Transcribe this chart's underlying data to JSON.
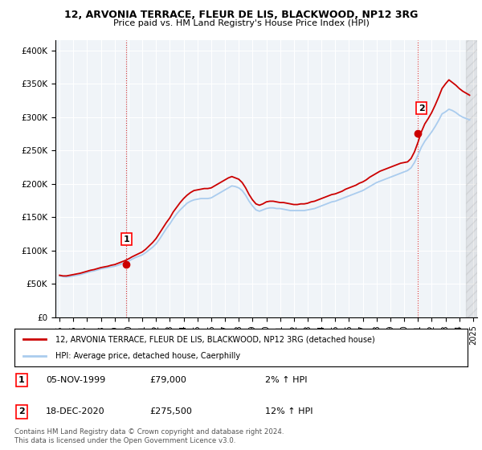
{
  "title_line1": "12, ARVONIA TERRACE, FLEUR DE LIS, BLACKWOOD, NP12 3RG",
  "title_line2": "Price paid vs. HM Land Registry's House Price Index (HPI)",
  "ylabel_ticks": [
    "£0",
    "£50K",
    "£100K",
    "£150K",
    "£200K",
    "£250K",
    "£300K",
    "£350K",
    "£400K"
  ],
  "ytick_values": [
    0,
    50000,
    100000,
    150000,
    200000,
    250000,
    300000,
    350000,
    400000
  ],
  "ylim": [
    0,
    415000
  ],
  "xlim_start": 1994.7,
  "xlim_end": 2025.3,
  "hpi_color": "#aaccee",
  "price_color": "#cc0000",
  "marker_color": "#cc0000",
  "background_color": "#f0f4f8",
  "grid_color": "#ffffff",
  "legend_label_red": "12, ARVONIA TERRACE, FLEUR DE LIS, BLACKWOOD, NP12 3RG (detached house)",
  "legend_label_blue": "HPI: Average price, detached house, Caerphilly",
  "transaction1_label": "1",
  "transaction1_date": "05-NOV-1999",
  "transaction1_price": "£79,000",
  "transaction1_hpi": "2% ↑ HPI",
  "transaction1_year": 1999.85,
  "transaction1_value": 79000,
  "transaction2_label": "2",
  "transaction2_date": "18-DEC-2020",
  "transaction2_price": "£275,500",
  "transaction2_hpi": "12% ↑ HPI",
  "transaction2_year": 2020.96,
  "transaction2_value": 275500,
  "footer_text": "Contains HM Land Registry data © Crown copyright and database right 2024.\nThis data is licensed under the Open Government Licence v3.0.",
  "hpi_data_years": [
    1995.0,
    1995.25,
    1995.5,
    1995.75,
    1996.0,
    1996.25,
    1996.5,
    1996.75,
    1997.0,
    1997.25,
    1997.5,
    1997.75,
    1998.0,
    1998.25,
    1998.5,
    1998.75,
    1999.0,
    1999.25,
    1999.5,
    1999.75,
    2000.0,
    2000.25,
    2000.5,
    2000.75,
    2001.0,
    2001.25,
    2001.5,
    2001.75,
    2002.0,
    2002.25,
    2002.5,
    2002.75,
    2003.0,
    2003.25,
    2003.5,
    2003.75,
    2004.0,
    2004.25,
    2004.5,
    2004.75,
    2005.0,
    2005.25,
    2005.5,
    2005.75,
    2006.0,
    2006.25,
    2006.5,
    2006.75,
    2007.0,
    2007.25,
    2007.5,
    2007.75,
    2008.0,
    2008.25,
    2008.5,
    2008.75,
    2009.0,
    2009.25,
    2009.5,
    2009.75,
    2010.0,
    2010.25,
    2010.5,
    2010.75,
    2011.0,
    2011.25,
    2011.5,
    2011.75,
    2012.0,
    2012.25,
    2012.5,
    2012.75,
    2013.0,
    2013.25,
    2013.5,
    2013.75,
    2014.0,
    2014.25,
    2014.5,
    2014.75,
    2015.0,
    2015.25,
    2015.5,
    2015.75,
    2016.0,
    2016.25,
    2016.5,
    2016.75,
    2017.0,
    2017.25,
    2017.5,
    2017.75,
    2018.0,
    2018.25,
    2018.5,
    2018.75,
    2019.0,
    2019.25,
    2019.5,
    2019.75,
    2020.0,
    2020.25,
    2020.5,
    2020.75,
    2021.0,
    2021.25,
    2021.5,
    2021.75,
    2022.0,
    2022.25,
    2022.5,
    2022.75,
    2023.0,
    2023.25,
    2023.5,
    2023.75,
    2024.0,
    2024.25,
    2024.5,
    2024.75
  ],
  "hpi_data_values": [
    62000,
    61000,
    60500,
    61000,
    62000,
    63000,
    64000,
    65500,
    67000,
    68500,
    69500,
    71000,
    72500,
    73500,
    74500,
    75500,
    76500,
    78000,
    80000,
    82000,
    84000,
    87000,
    89500,
    91500,
    93500,
    97000,
    101000,
    105000,
    110000,
    117000,
    125000,
    133000,
    140000,
    148000,
    155000,
    161000,
    166000,
    171000,
    174000,
    176000,
    177000,
    178000,
    178000,
    178000,
    179000,
    182000,
    185000,
    188000,
    191000,
    194000,
    197000,
    196000,
    194000,
    190000,
    183000,
    174000,
    167000,
    161000,
    159000,
    161000,
    163000,
    164000,
    164000,
    163000,
    163000,
    162000,
    161000,
    160000,
    160000,
    160000,
    160000,
    160000,
    161000,
    162000,
    163000,
    165000,
    167000,
    169000,
    171000,
    173000,
    174000,
    176000,
    178000,
    180000,
    182000,
    184000,
    186000,
    188000,
    190000,
    193000,
    196000,
    199000,
    202000,
    204000,
    206000,
    208000,
    210000,
    212000,
    214000,
    216000,
    218000,
    220000,
    224000,
    232000,
    243000,
    255000,
    264000,
    271000,
    278000,
    286000,
    295000,
    305000,
    308000,
    312000,
    310000,
    307000,
    303000,
    300000,
    298000,
    296000
  ],
  "price_data_years": [
    1995.0,
    1995.25,
    1995.5,
    1995.75,
    1996.0,
    1996.25,
    1996.5,
    1996.75,
    1997.0,
    1997.25,
    1997.5,
    1997.75,
    1998.0,
    1998.25,
    1998.5,
    1998.75,
    1999.0,
    1999.25,
    1999.5,
    1999.75,
    2000.0,
    2000.25,
    2000.5,
    2000.75,
    2001.0,
    2001.25,
    2001.5,
    2001.75,
    2002.0,
    2002.25,
    2002.5,
    2002.75,
    2003.0,
    2003.25,
    2003.5,
    2003.75,
    2004.0,
    2004.25,
    2004.5,
    2004.75,
    2005.0,
    2005.25,
    2005.5,
    2005.75,
    2006.0,
    2006.25,
    2006.5,
    2006.75,
    2007.0,
    2007.25,
    2007.5,
    2007.75,
    2008.0,
    2008.25,
    2008.5,
    2008.75,
    2009.0,
    2009.25,
    2009.5,
    2009.75,
    2010.0,
    2010.25,
    2010.5,
    2010.75,
    2011.0,
    2011.25,
    2011.5,
    2011.75,
    2012.0,
    2012.25,
    2012.5,
    2012.75,
    2013.0,
    2013.25,
    2013.5,
    2013.75,
    2014.0,
    2014.25,
    2014.5,
    2014.75,
    2015.0,
    2015.25,
    2015.5,
    2015.75,
    2016.0,
    2016.25,
    2016.5,
    2016.75,
    2017.0,
    2017.25,
    2017.5,
    2017.75,
    2018.0,
    2018.25,
    2018.5,
    2018.75,
    2019.0,
    2019.25,
    2019.5,
    2019.75,
    2020.0,
    2020.25,
    2020.5,
    2020.75,
    2021.0,
    2021.25,
    2021.5,
    2021.75,
    2022.0,
    2022.25,
    2022.5,
    2022.75,
    2023.0,
    2023.25,
    2023.5,
    2023.75,
    2024.0,
    2024.25,
    2024.5,
    2024.75
  ],
  "price_data_values": [
    63000,
    62000,
    62000,
    63000,
    64000,
    65000,
    66000,
    67500,
    69000,
    70500,
    71500,
    73000,
    74500,
    75500,
    76500,
    78000,
    79000,
    81000,
    83000,
    85000,
    87500,
    90500,
    93000,
    95500,
    98000,
    102000,
    107000,
    112000,
    118000,
    126000,
    134000,
    142000,
    149000,
    158000,
    165000,
    172000,
    178000,
    183000,
    187000,
    190000,
    191000,
    192000,
    193000,
    193000,
    194000,
    197000,
    200000,
    203000,
    206000,
    209000,
    211000,
    209000,
    207000,
    202000,
    194000,
    184000,
    176000,
    170000,
    168000,
    170000,
    173000,
    174000,
    174000,
    173000,
    172000,
    172000,
    171000,
    170000,
    169000,
    169000,
    170000,
    170000,
    171000,
    173000,
    174000,
    176000,
    178000,
    180000,
    182000,
    184000,
    185000,
    187000,
    189000,
    192000,
    194000,
    196000,
    198000,
    201000,
    203000,
    206000,
    210000,
    213000,
    216000,
    219000,
    221000,
    223000,
    225000,
    227000,
    229000,
    231000,
    232000,
    233000,
    238000,
    248000,
    262000,
    278000,
    290000,
    298000,
    307000,
    318000,
    330000,
    343000,
    350000,
    356000,
    352000,
    348000,
    343000,
    339000,
    336000,
    333000
  ]
}
